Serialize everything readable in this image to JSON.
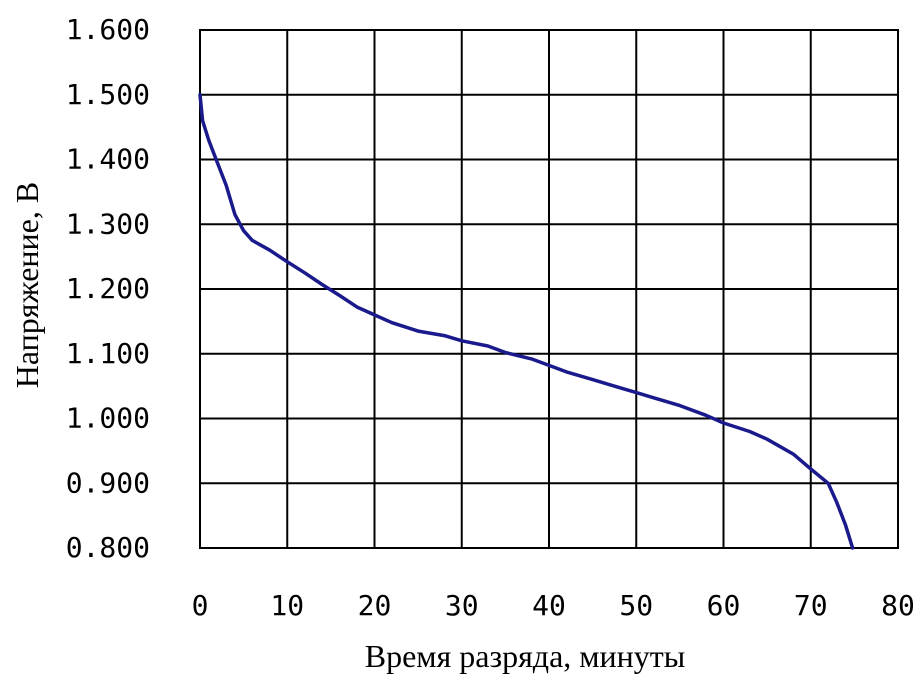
{
  "chart_data": {
    "type": "line",
    "xlabel": "Время разряда, минуты",
    "ylabel": "Напряжение, В",
    "xlim": [
      0,
      80
    ],
    "ylim": [
      0.8,
      1.6
    ],
    "x_ticks": [
      0,
      10,
      20,
      30,
      40,
      50,
      60,
      70,
      80
    ],
    "x_tick_labels": [
      "0",
      "10",
      "20",
      "30",
      "40",
      "50",
      "60",
      "70",
      "80"
    ],
    "y_ticks": [
      1.6,
      1.5,
      1.4,
      1.3,
      1.2,
      1.1,
      1.0,
      0.9,
      0.8
    ],
    "y_tick_labels": [
      "1.600",
      "1.500",
      "1.400",
      "1.300",
      "1.200",
      "1.100",
      "1.000",
      "0.900",
      "0.800"
    ],
    "grid": true,
    "series": [
      {
        "color": "#1a1a8c",
        "x": [
          0,
          0.3,
          1,
          2,
          3,
          4,
          5,
          6,
          8,
          10,
          12,
          14,
          16,
          18,
          20,
          22,
          25,
          28,
          30,
          33,
          35,
          38,
          40,
          42,
          45,
          48,
          50,
          52,
          55,
          58,
          60,
          63,
          65,
          68,
          70,
          72,
          73,
          74,
          74.8
        ],
        "y": [
          1.5,
          1.46,
          1.43,
          1.395,
          1.36,
          1.315,
          1.29,
          1.275,
          1.26,
          1.242,
          1.225,
          1.207,
          1.19,
          1.172,
          1.16,
          1.148,
          1.135,
          1.128,
          1.12,
          1.112,
          1.102,
          1.092,
          1.082,
          1.072,
          1.06,
          1.048,
          1.04,
          1.032,
          1.02,
          1.005,
          0.993,
          0.98,
          0.968,
          0.945,
          0.922,
          0.9,
          0.87,
          0.835,
          0.8
        ]
      }
    ]
  }
}
